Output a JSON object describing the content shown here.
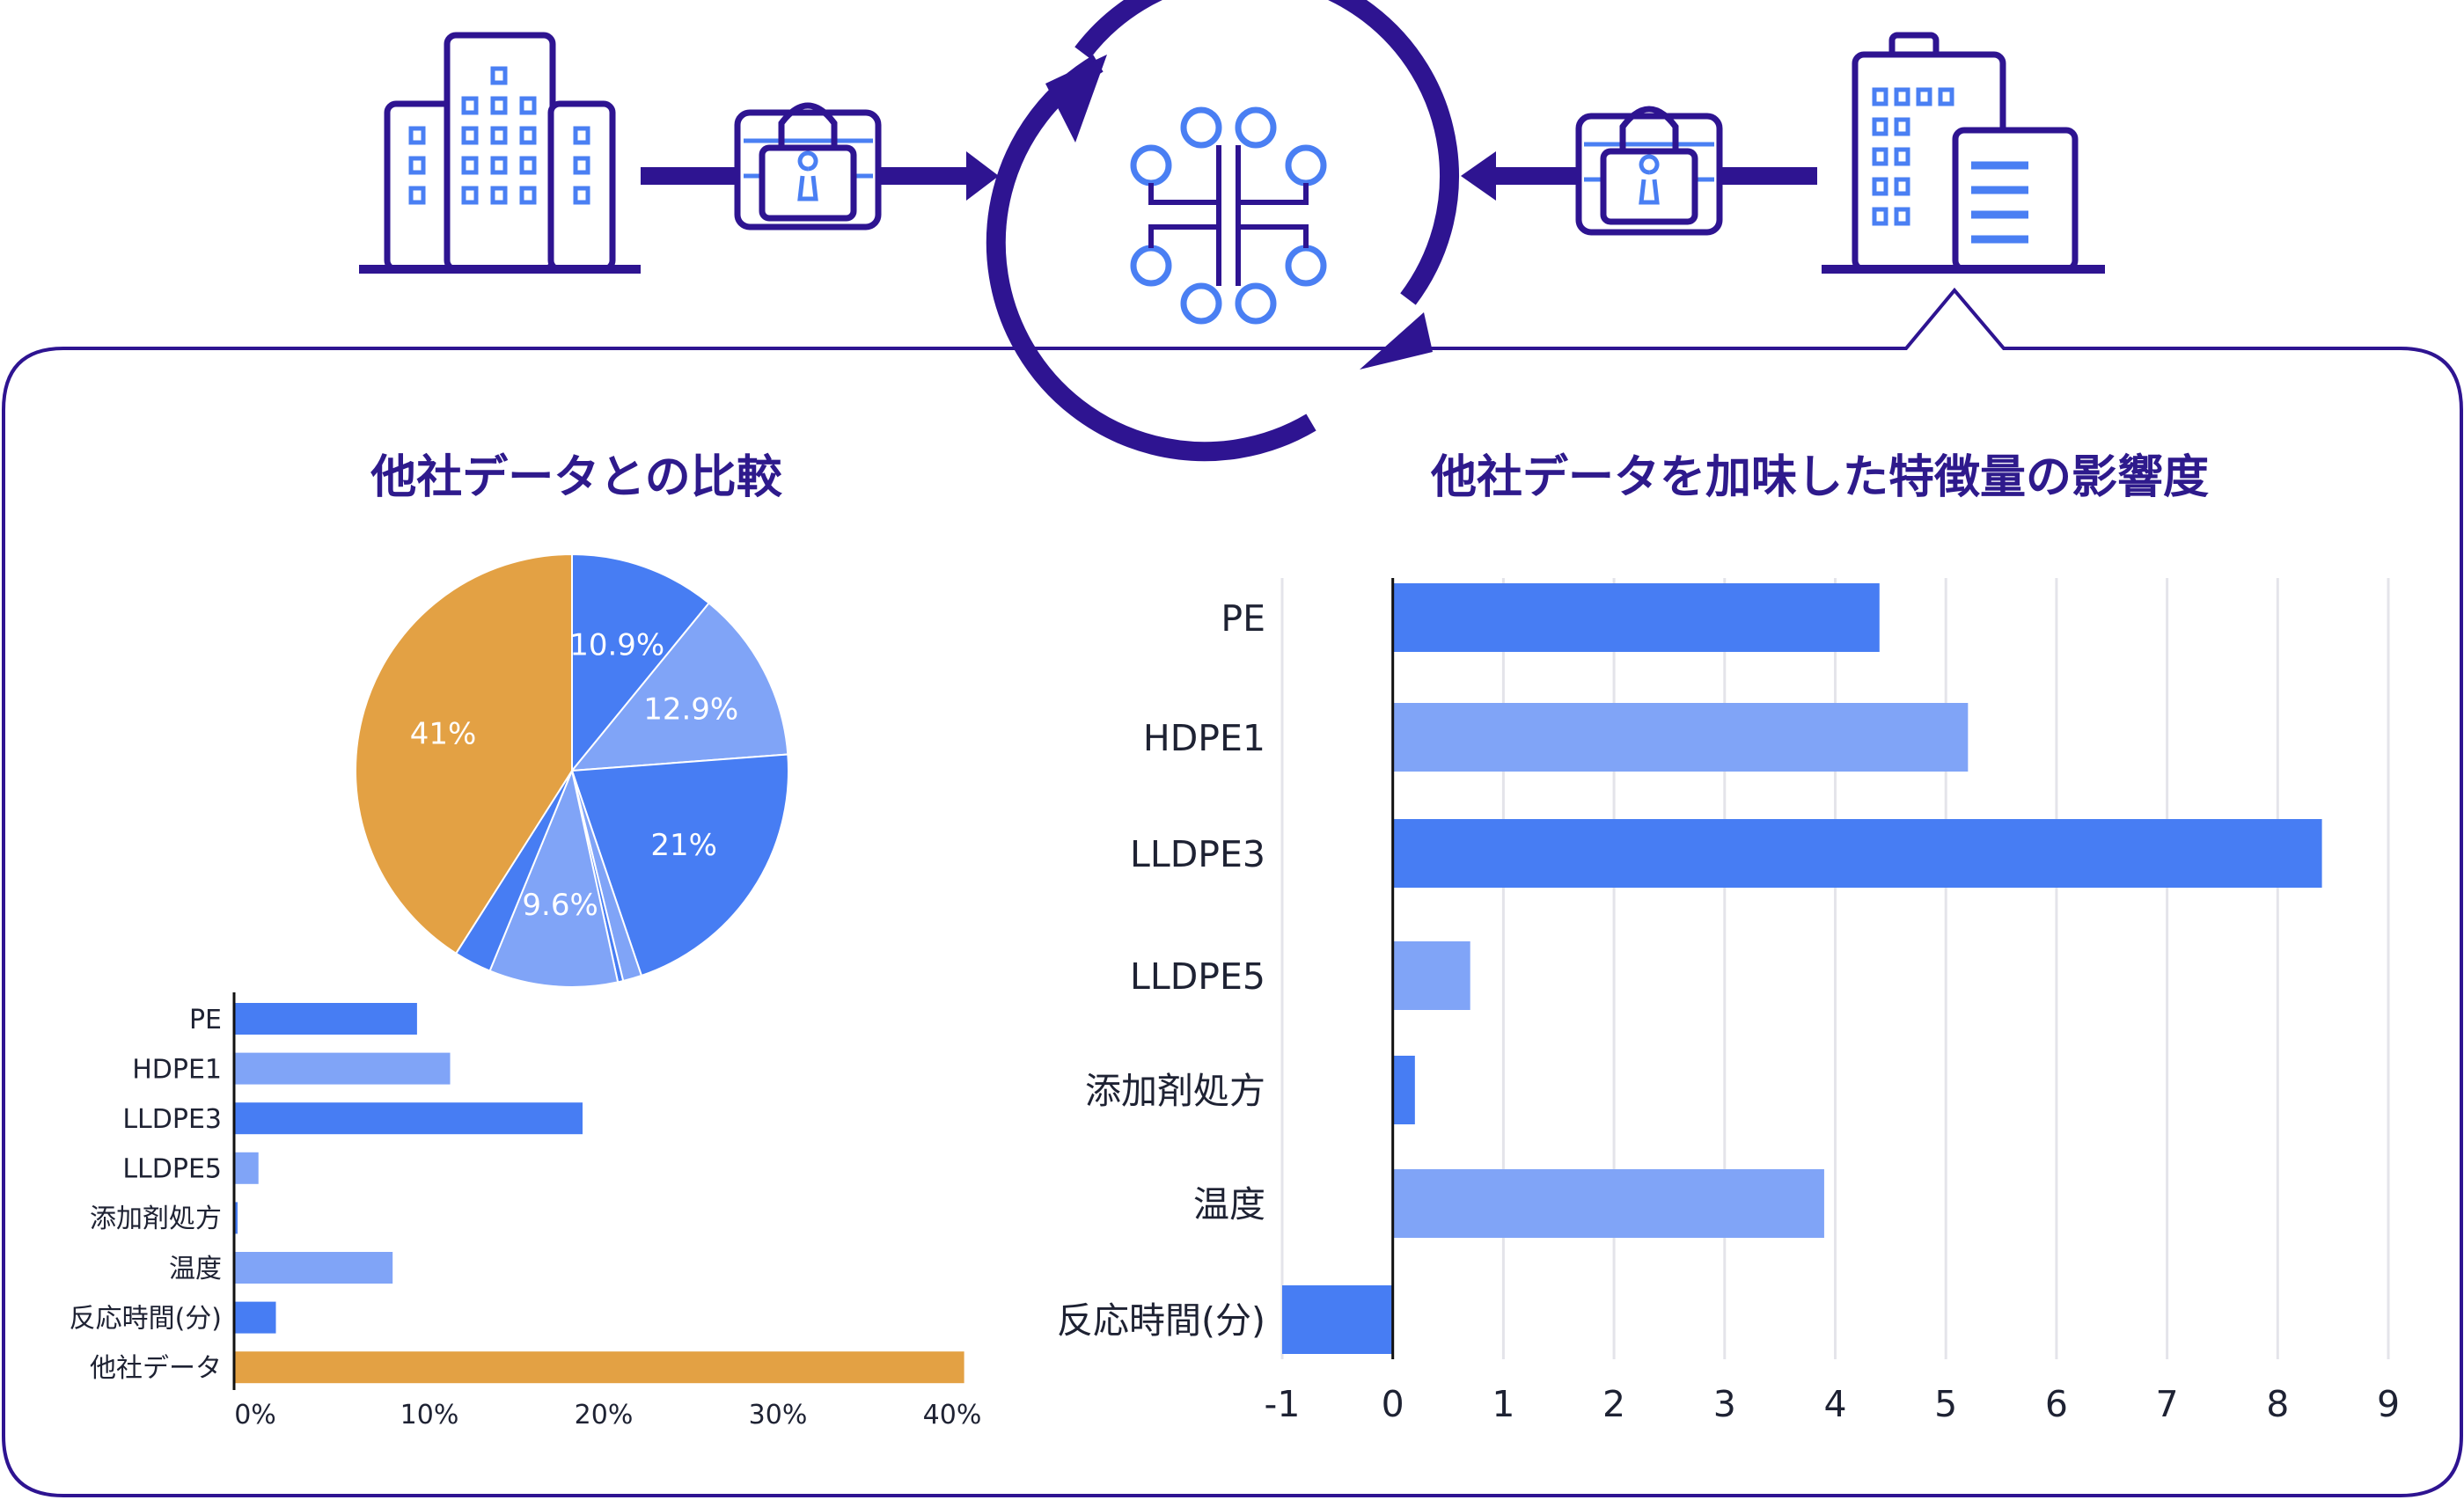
{
  "colors": {
    "navy": "#2e1491",
    "blue": "#477df3",
    "light_blue": "#80a4f7",
    "orange": "#e3a144",
    "circuit": "#4a7ff3"
  },
  "diagram": {
    "left_company_icon": "office-buildings-icon",
    "right_company_icon": "office-building-icon",
    "lock_icon": "encrypted-lock-icon",
    "center_icon": "ai-circuit-cycle-icon"
  },
  "left_title": "他社データとの比較",
  "right_title": "他社データを加味した特徴量の影響度",
  "chart_data": [
    {
      "type": "pie",
      "title": "他社データとの比較",
      "categories": [
        "PE",
        "HDPE1",
        "LLDPE3",
        "LLDPE5",
        "添加剤処方",
        "温度",
        "反応時間(分)",
        "他社データ"
      ],
      "values": [
        10.9,
        12.9,
        21,
        1.4,
        0.4,
        9.6,
        2.8,
        41
      ],
      "labels": [
        "10.9%",
        "12.9%",
        "21%",
        "",
        "",
        "9.6%",
        "",
        "41%"
      ],
      "colors": [
        "#477df3",
        "#80a4f7",
        "#477df3",
        "#80a4f7",
        "#477df3",
        "#80a4f7",
        "#477df3",
        "#e3a144"
      ]
    },
    {
      "type": "bar",
      "orientation": "horizontal",
      "categories": [
        "PE",
        "HDPE1",
        "LLDPE3",
        "LLDPE5",
        "添加剤処方",
        "温度",
        "反応時間(分)",
        "他社データ"
      ],
      "values": [
        10.5,
        12.4,
        20,
        1.4,
        0.2,
        9.1,
        2.4,
        41.9
      ],
      "colors": [
        "#477df3",
        "#80a4f7",
        "#477df3",
        "#80a4f7",
        "#477df3",
        "#80a4f7",
        "#477df3",
        "#e3a144"
      ],
      "xlim": [
        0,
        42
      ],
      "xticks": [
        0,
        10,
        20,
        30,
        40
      ],
      "xtick_labels": [
        "0%",
        "10%",
        "20%",
        "30%",
        "40%"
      ],
      "grid": false
    },
    {
      "type": "bar",
      "orientation": "horizontal",
      "title": "他社データを加味した特徴量の影響度",
      "categories": [
        "PE",
        "HDPE1",
        "LLDPE3",
        "LLDPE5",
        "添加剤処方",
        "温度",
        "反応時間(分)"
      ],
      "values": [
        4.4,
        5.2,
        8.4,
        0.7,
        0.2,
        3.9,
        -1
      ],
      "colors": [
        "#477df3",
        "#80a4f7",
        "#477df3",
        "#80a4f7",
        "#477df3",
        "#80a4f7",
        "#477df3"
      ],
      "xlim": [
        -1,
        9
      ],
      "xticks": [
        -1,
        0,
        1,
        2,
        3,
        4,
        5,
        6,
        7,
        8,
        9
      ],
      "xtick_labels": [
        "-1",
        "0",
        "1",
        "2",
        "3",
        "4",
        "5",
        "6",
        "7",
        "8",
        "9"
      ],
      "grid": true
    }
  ]
}
